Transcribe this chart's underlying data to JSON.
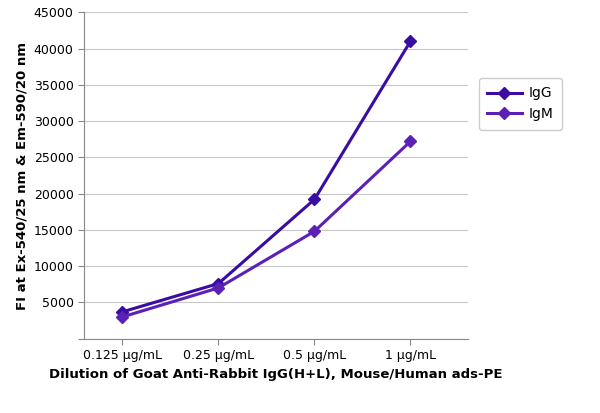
{
  "x_labels": [
    "0.125 μg/mL",
    "0.25 μg/mL",
    "0.5 μg/mL",
    "1 μg/mL"
  ],
  "x_positions": [
    0,
    1,
    2,
    3
  ],
  "IgG": [
    3700,
    7600,
    19200,
    41000
  ],
  "IgM": [
    3000,
    7000,
    14800,
    27200
  ],
  "IgG_color": "#3a0ca3",
  "IgM_color": "#5b21b6",
  "ylabel": "FI at Ex-540/25 nm & Em-590/20 nm",
  "xlabel": "Dilution of Goat Anti-Rabbit IgG(H+L), Mouse/Human ads-PE",
  "ylim": [
    0,
    45000
  ],
  "yticks": [
    0,
    5000,
    10000,
    15000,
    20000,
    25000,
    30000,
    35000,
    40000,
    45000
  ],
  "legend_labels": [
    "IgG",
    "IgM"
  ],
  "marker": "D",
  "markersize": 6,
  "linewidth": 2.2,
  "label_fontsize": 9.5,
  "tick_fontsize": 9,
  "legend_fontsize": 10,
  "grid_color": "#c8c8c8",
  "spine_color": "#888888"
}
